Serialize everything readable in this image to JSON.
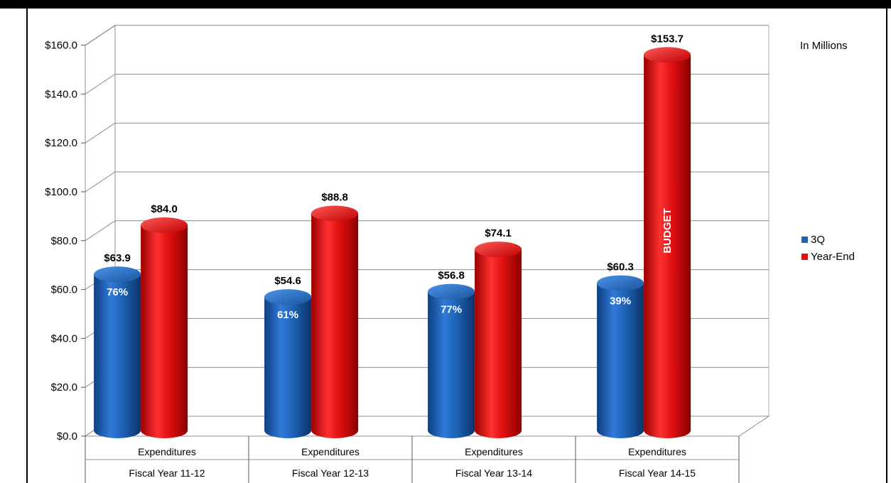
{
  "header": {
    "title_fragment": ""
  },
  "chart_data": {
    "type": "bar",
    "unit_note": "In Millions",
    "ylim": [
      0,
      160
    ],
    "yticks": [
      0,
      20,
      40,
      60,
      80,
      100,
      120,
      140,
      160
    ],
    "ytick_labels": [
      "$0.0",
      "$20.0",
      "$40.0",
      "$60.0",
      "$80.0",
      "$100.0",
      "$120.0",
      "$140.0",
      "$160.0"
    ],
    "categories": [
      [
        "Expenditures",
        "Fiscal Year 11-12"
      ],
      [
        "Expenditures",
        "Fiscal Year 12-13"
      ],
      [
        "Expenditures",
        "Fiscal Year 13-14"
      ],
      [
        "Expenditures",
        "Fiscal Year 14-15"
      ]
    ],
    "series": [
      {
        "name": "3Q",
        "color": "#1f63b8",
        "values": [
          63.9,
          54.6,
          56.8,
          60.3
        ],
        "value_labels": [
          "$63.9",
          "$54.6",
          "$56.8",
          "$60.3"
        ],
        "inner_labels": [
          "76%",
          "61%",
          "77%",
          "39%"
        ]
      },
      {
        "name": "Year-End",
        "color": "#e01010",
        "values": [
          84.0,
          88.8,
          74.1,
          153.7
        ],
        "value_labels": [
          "$84.0",
          "$88.8",
          "$74.1",
          "$153.7"
        ],
        "inner_labels": [
          "",
          "",
          "",
          "BUDGET"
        ]
      }
    ],
    "grid": true,
    "legend": "right"
  }
}
